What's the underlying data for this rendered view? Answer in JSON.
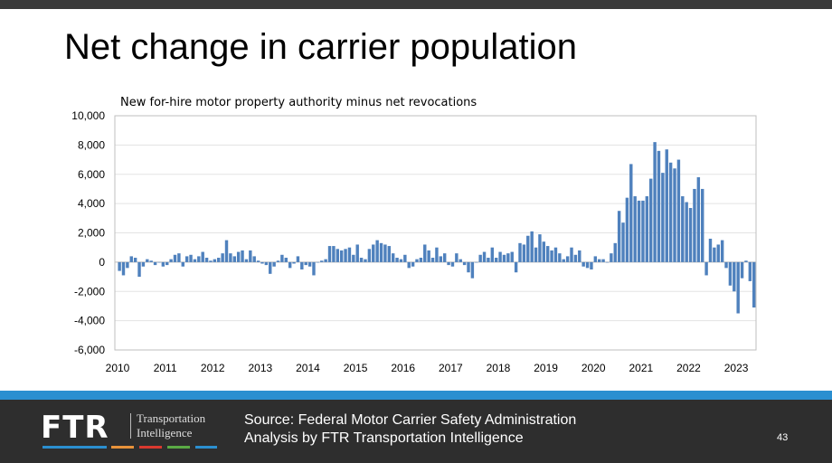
{
  "slide": {
    "title": "Net change in carrier population",
    "source_line1": "Source: Federal Motor Carrier Safety Administration",
    "source_line2": "Analysis by FTR Transportation Intelligence",
    "page_number": "43",
    "logo": {
      "text": "FTR",
      "line1": "Transportation",
      "line2": "Intelligence"
    },
    "colors": {
      "band": "#2b8fd0",
      "footer": "#2e2e2e",
      "bar": "#4f81bd",
      "logo_lines": [
        "#2b8fd0",
        "#e8923a",
        "#d9392f",
        "#5aaa45",
        "#2b8fd0"
      ]
    }
  },
  "chart_data": {
    "type": "bar",
    "title": "New for-hire motor property authority minus net revocations",
    "xlabel": "",
    "ylabel": "",
    "ylim": [
      -6000,
      10000
    ],
    "yticks": [
      "10,000",
      "8,000",
      "6,000",
      "4,000",
      "2,000",
      "0",
      "-2,000",
      "-4,000",
      "-6,000"
    ],
    "xticks": [
      "2010",
      "2011",
      "2012",
      "2013",
      "2014",
      "2015",
      "2016",
      "2017",
      "2018",
      "2019",
      "2020",
      "2021",
      "2022",
      "2023"
    ],
    "grid": true,
    "x_start": "2010-01",
    "x_frequency": "monthly",
    "values": [
      -600,
      -900,
      -400,
      400,
      300,
      -1000,
      -300,
      200,
      100,
      -200,
      0,
      -300,
      -200,
      200,
      500,
      600,
      -300,
      400,
      500,
      200,
      400,
      700,
      300,
      100,
      200,
      300,
      600,
      1500,
      600,
      400,
      700,
      800,
      200,
      800,
      400,
      100,
      -100,
      -200,
      -800,
      -300,
      100,
      500,
      300,
      -400,
      -100,
      400,
      -500,
      -200,
      -300,
      -900,
      0,
      100,
      200,
      1100,
      1100,
      900,
      800,
      900,
      1000,
      500,
      1200,
      300,
      200,
      900,
      1200,
      1500,
      1300,
      1200,
      1100,
      600,
      300,
      200,
      500,
      -400,
      -300,
      200,
      300,
      1200,
      800,
      300,
      1000,
      400,
      600,
      -200,
      -300,
      600,
      200,
      -200,
      -700,
      -1100,
      0,
      500,
      700,
      300,
      1000,
      300,
      700,
      500,
      600,
      700,
      -700,
      1300,
      1200,
      1800,
      2100,
      1000,
      1900,
      1400,
      1100,
      800,
      1000,
      600,
      200,
      400,
      1000,
      500,
      800,
      -300,
      -400,
      -500,
      400,
      200,
      200,
      0,
      600,
      1300,
      3500,
      2700,
      4400,
      6700,
      4500,
      4200,
      4200,
      4500,
      5700,
      8200,
      7600,
      6100,
      7700,
      6800,
      6400,
      7000,
      4500,
      4100,
      3700,
      5000,
      5800,
      5000,
      -900,
      1600,
      1000,
      1200,
      1500,
      -400,
      -1600,
      -2000,
      -3500,
      -1100,
      100,
      -1300,
      -3100
    ]
  }
}
